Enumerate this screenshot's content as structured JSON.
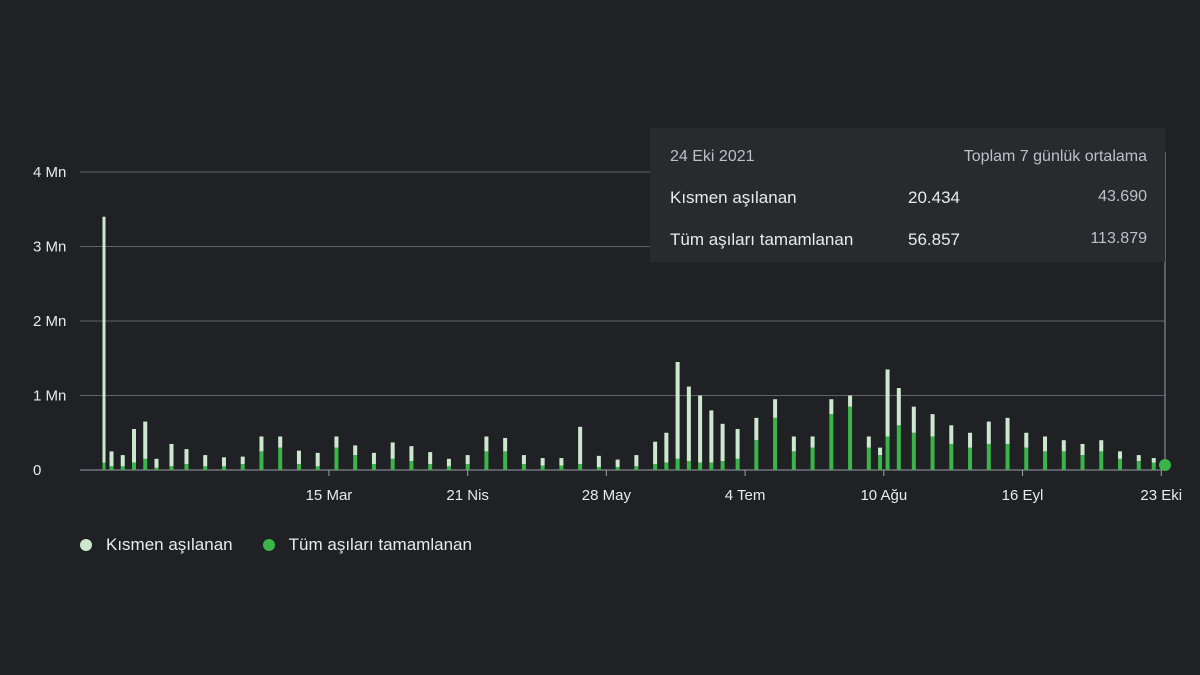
{
  "colors": {
    "background": "#202124",
    "partial": "#cde8cf",
    "full": "#3ab54a",
    "grid": "#5f6368",
    "text": "#e8eaed"
  },
  "tooltip": {
    "date": "24 Eki 2021",
    "header": "Toplam 7 günlük ortalama",
    "rows": [
      {
        "label": "Kısmen aşılanan",
        "total": "20.434",
        "avg": "43.690"
      },
      {
        "label": "Tüm aşıları tamamlanan",
        "total": "56.857",
        "avg": "113.879"
      }
    ]
  },
  "chart_data": {
    "type": "bar",
    "stacked": true,
    "title": "",
    "xlabel": "",
    "ylabel": "",
    "ylim": [
      0,
      4000000
    ],
    "y_ticks": [
      {
        "value": 0,
        "label": "0"
      },
      {
        "value": 1000000,
        "label": "1 Mn"
      },
      {
        "value": 2000000,
        "label": "2 Mn"
      },
      {
        "value": 3000000,
        "label": "3 Mn"
      },
      {
        "value": 4000000,
        "label": "4 Mn"
      }
    ],
    "x_ticks": [
      {
        "date": "2021-03-15",
        "label": "15 Mar"
      },
      {
        "date": "2021-04-21",
        "label": "21 Nis"
      },
      {
        "date": "2021-05-28",
        "label": "28 May"
      },
      {
        "date": "2021-07-04",
        "label": "4 Tem"
      },
      {
        "date": "2021-08-10",
        "label": "10 Ağu"
      },
      {
        "date": "2021-09-16",
        "label": "16 Eyl"
      },
      {
        "date": "2021-10-23",
        "label": "23 Eki"
      }
    ],
    "x_range": [
      "2021-01-14",
      "2021-10-24"
    ],
    "legend_position": "bottom-left",
    "series": [
      {
        "name": "Kısmen aşılanan",
        "key": "partial",
        "x": [
          "2021-01-14",
          "2021-01-16",
          "2021-01-19",
          "2021-01-22",
          "2021-01-25",
          "2021-01-28",
          "2021-02-01",
          "2021-02-05",
          "2021-02-10",
          "2021-02-15",
          "2021-02-20",
          "2021-02-25",
          "2021-03-02",
          "2021-03-07",
          "2021-03-12",
          "2021-03-17",
          "2021-03-22",
          "2021-03-27",
          "2021-04-01",
          "2021-04-06",
          "2021-04-11",
          "2021-04-16",
          "2021-04-21",
          "2021-04-26",
          "2021-05-01",
          "2021-05-06",
          "2021-05-11",
          "2021-05-16",
          "2021-05-21",
          "2021-05-26",
          "2021-05-31",
          "2021-06-05",
          "2021-06-10",
          "2021-06-13",
          "2021-06-16",
          "2021-06-19",
          "2021-06-22",
          "2021-06-25",
          "2021-06-28",
          "2021-07-02",
          "2021-07-07",
          "2021-07-12",
          "2021-07-17",
          "2021-07-22",
          "2021-07-27",
          "2021-08-01",
          "2021-08-06",
          "2021-08-09",
          "2021-08-11",
          "2021-08-14",
          "2021-08-18",
          "2021-08-23",
          "2021-08-28",
          "2021-09-02",
          "2021-09-07",
          "2021-09-12",
          "2021-09-17",
          "2021-09-22",
          "2021-09-27",
          "2021-10-02",
          "2021-10-07",
          "2021-10-12",
          "2021-10-17",
          "2021-10-21",
          "2021-10-24"
        ],
        "values": [
          3300000,
          200000,
          150000,
          450000,
          500000,
          120000,
          300000,
          200000,
          150000,
          120000,
          100000,
          200000,
          150000,
          180000,
          180000,
          150000,
          130000,
          150000,
          220000,
          200000,
          160000,
          100000,
          120000,
          200000,
          180000,
          120000,
          100000,
          100000,
          500000,
          150000,
          100000,
          150000,
          300000,
          400000,
          1300000,
          1000000,
          900000,
          700000,
          500000,
          400000,
          300000,
          250000,
          200000,
          150000,
          200000,
          150000,
          150000,
          100000,
          900000,
          500000,
          350000,
          300000,
          250000,
          200000,
          300000,
          350000,
          200000,
          200000,
          150000,
          150000,
          150000,
          100000,
          80000,
          60000,
          20434
        ]
      },
      {
        "name": "Tüm aşıları tamamlanan",
        "key": "full",
        "x": [
          "2021-01-14",
          "2021-01-16",
          "2021-01-19",
          "2021-01-22",
          "2021-01-25",
          "2021-01-28",
          "2021-02-01",
          "2021-02-05",
          "2021-02-10",
          "2021-02-15",
          "2021-02-20",
          "2021-02-25",
          "2021-03-02",
          "2021-03-07",
          "2021-03-12",
          "2021-03-17",
          "2021-03-22",
          "2021-03-27",
          "2021-04-01",
          "2021-04-06",
          "2021-04-11",
          "2021-04-16",
          "2021-04-21",
          "2021-04-26",
          "2021-05-01",
          "2021-05-06",
          "2021-05-11",
          "2021-05-16",
          "2021-05-21",
          "2021-05-26",
          "2021-05-31",
          "2021-06-05",
          "2021-06-10",
          "2021-06-13",
          "2021-06-16",
          "2021-06-19",
          "2021-06-22",
          "2021-06-25",
          "2021-06-28",
          "2021-07-02",
          "2021-07-07",
          "2021-07-12",
          "2021-07-17",
          "2021-07-22",
          "2021-07-27",
          "2021-08-01",
          "2021-08-06",
          "2021-08-09",
          "2021-08-11",
          "2021-08-14",
          "2021-08-18",
          "2021-08-23",
          "2021-08-28",
          "2021-09-02",
          "2021-09-07",
          "2021-09-12",
          "2021-09-17",
          "2021-09-22",
          "2021-09-27",
          "2021-10-02",
          "2021-10-07",
          "2021-10-12",
          "2021-10-17",
          "2021-10-21",
          "2021-10-24"
        ],
        "values": [
          100000,
          50000,
          50000,
          100000,
          150000,
          30000,
          50000,
          80000,
          50000,
          50000,
          80000,
          250000,
          300000,
          80000,
          50000,
          300000,
          200000,
          80000,
          150000,
          120000,
          80000,
          50000,
          80000,
          250000,
          250000,
          80000,
          60000,
          60000,
          80000,
          40000,
          40000,
          50000,
          80000,
          100000,
          150000,
          120000,
          100000,
          100000,
          120000,
          150000,
          400000,
          700000,
          250000,
          300000,
          750000,
          850000,
          300000,
          200000,
          450000,
          600000,
          500000,
          450000,
          350000,
          300000,
          350000,
          350000,
          300000,
          250000,
          250000,
          200000,
          250000,
          150000,
          120000,
          100000,
          56857
        ]
      }
    ]
  }
}
